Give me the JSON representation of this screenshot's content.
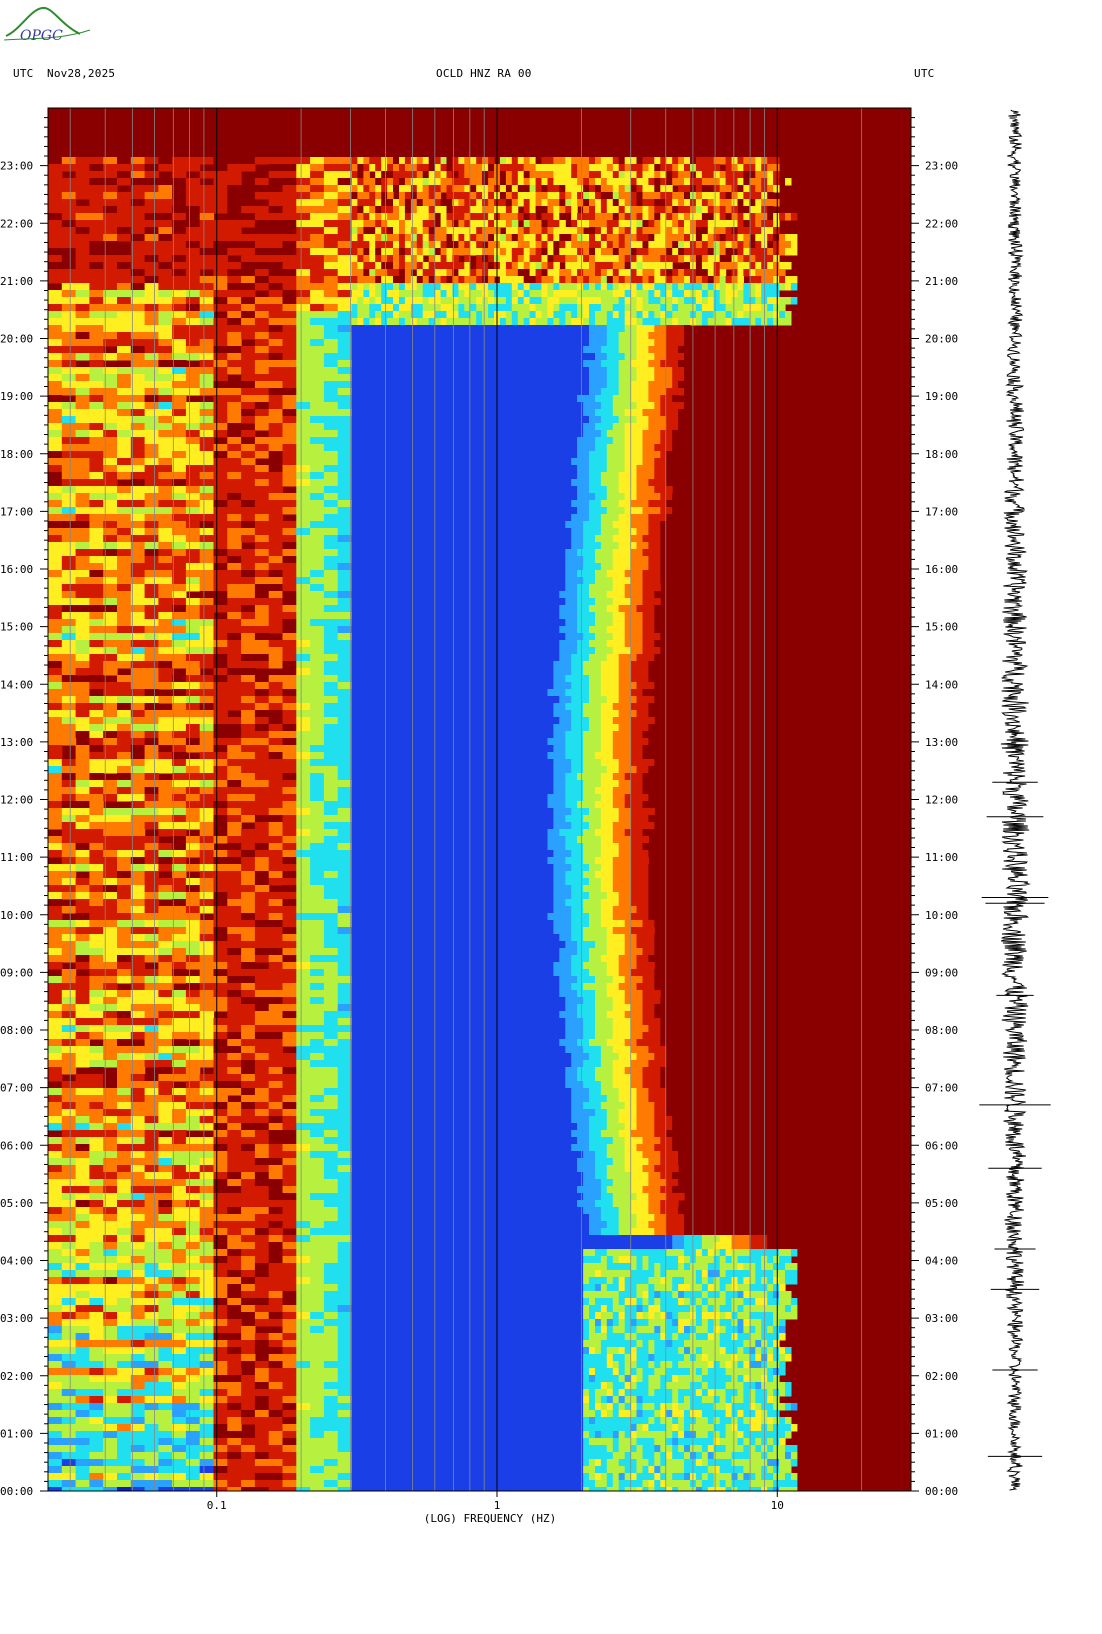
{
  "logo": {
    "text": "OPGC",
    "accent": "#2e8b2e",
    "text_color": "#3a3aa0"
  },
  "header": {
    "left_tz": "UTC",
    "date": "Nov28,2025",
    "station": "OCLD HNZ RA 00",
    "right_tz": "UTC"
  },
  "colors": {
    "dark_red": "#8a0000",
    "red": "#d21a00",
    "orange": "#ff7a00",
    "yellow": "#ffee20",
    "yellow_green": "#b8f040",
    "cyan": "#20e0f0",
    "light_blue": "#2aa0ff",
    "blue": "#1b3fe6",
    "deep_blue": "#0a1ec8"
  },
  "chart_data": {
    "type": "heatmap",
    "xlabel": "(LOG) FREQUENCY (HZ)",
    "xscale": "log",
    "xlim": [
      0.025,
      30
    ],
    "x_ticks": [
      {
        "value": 0.1,
        "label": "0.1"
      },
      {
        "value": 1,
        "label": "1"
      },
      {
        "value": 10,
        "label": "10"
      }
    ],
    "ylim_hours": [
      0,
      24
    ],
    "y_ticks": [
      "00:00",
      "01:00",
      "02:00",
      "03:00",
      "04:00",
      "05:00",
      "06:00",
      "07:00",
      "08:00",
      "09:00",
      "10:00",
      "11:00",
      "12:00",
      "13:00",
      "14:00",
      "15:00",
      "16:00",
      "17:00",
      "18:00",
      "19:00",
      "20:00",
      "21:00",
      "22:00",
      "23:00"
    ],
    "y_ticks_right": [
      "00:00",
      "01:00",
      "02:00",
      "03:00",
      "04:00",
      "05:00",
      "06:00",
      "07:00",
      "08:00",
      "09:00",
      "10:00",
      "11:00",
      "12:00",
      "13:00",
      "14:00",
      "15:00",
      "16:00",
      "17:00",
      "18:00",
      "19:00",
      "20:00",
      "21:00",
      "22:00",
      "23:00"
    ],
    "grid_freqs": [
      0.03,
      0.04,
      0.05,
      0.06,
      0.07,
      0.08,
      0.09,
      0.1,
      0.2,
      0.3,
      0.4,
      0.5,
      0.6,
      0.7,
      0.8,
      0.9,
      1,
      2,
      3,
      4,
      5,
      6,
      7,
      8,
      9,
      10,
      20
    ],
    "major_grid_freqs": [
      0.1,
      1,
      10
    ],
    "seismogram_spikes_hours": [
      0.6,
      2.1,
      3.5,
      4.2,
      5.6,
      6.7,
      8.6,
      10.2,
      10.3,
      12.3,
      11.7
    ]
  }
}
